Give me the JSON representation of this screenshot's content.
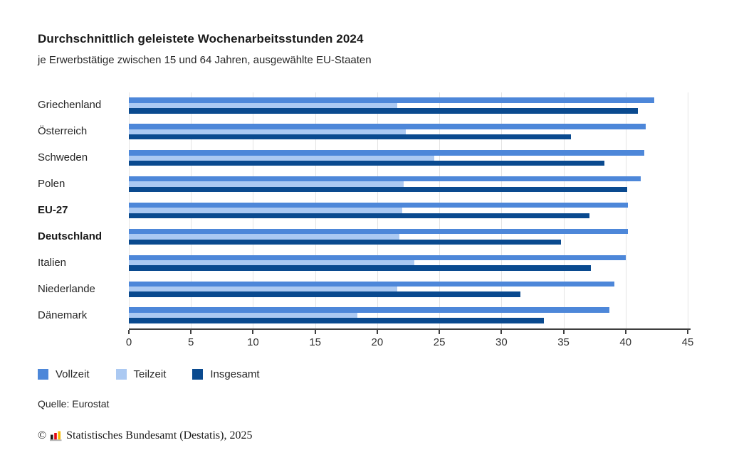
{
  "header": {
    "title": "Durchschnittlich geleistete Wochenarbeitsstunden 2024",
    "subtitle": "je Erwerbstätige zwischen 15 und 64 Jahren, ausgewählte EU-Staaten"
  },
  "chart_data": {
    "type": "bar",
    "orientation": "horizontal",
    "title": "Durchschnittlich geleistete Wochenarbeitsstunden 2024",
    "xlabel": "",
    "ylabel": "",
    "xlim": [
      0,
      45
    ],
    "xticks": [
      0,
      5,
      10,
      15,
      20,
      25,
      30,
      35,
      40,
      45
    ],
    "grid": true,
    "legend_position": "bottom",
    "categories": [
      "Griechenland",
      "Österreich",
      "Schweden",
      "Polen",
      "EU-27",
      "Deutschland",
      "Italien",
      "Niederlande",
      "Dänemark"
    ],
    "bold_categories": [
      "EU-27",
      "Deutschland"
    ],
    "series": [
      {
        "name": "Vollzeit",
        "color": "#4d87d9",
        "values": [
          42.3,
          41.6,
          41.5,
          41.2,
          40.2,
          40.2,
          40.0,
          39.1,
          38.7
        ]
      },
      {
        "name": "Teilzeit",
        "color": "#abc9f2",
        "values": [
          21.6,
          22.3,
          24.6,
          22.1,
          22.0,
          21.8,
          23.0,
          21.6,
          18.4
        ]
      },
      {
        "name": "Insgesamt",
        "color": "#0a4a8f",
        "values": [
          41.0,
          35.6,
          38.3,
          40.1,
          37.1,
          34.8,
          37.2,
          31.5,
          33.4
        ]
      }
    ],
    "colors": {
      "gridline": "#e4e4e4",
      "axis": "#3f3f3f",
      "tick_label": "#333333"
    }
  },
  "source": {
    "text": "Quelle: Eurostat"
  },
  "footer": {
    "copyright_symbol": "©",
    "text": "Statistisches Bundesamt (Destatis), 2025",
    "logo_colors": {
      "bar1": "#1a1a1a",
      "bar2": "#e30613",
      "bar3": "#f6b900",
      "baseline": "#b5b5b5"
    }
  }
}
